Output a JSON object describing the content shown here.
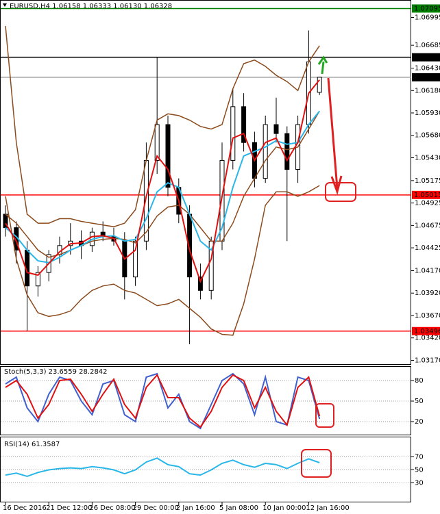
{
  "chart_data": [
    {
      "type": "candlestick",
      "title": "EURUSD,H4  1.06158 1.06333 1.06130 1.06328",
      "categories": [
        "16 Dec 2016",
        null,
        null,
        null,
        "21 Dec 12:00",
        null,
        null,
        null,
        "26 Dec 08:00",
        null,
        null,
        null,
        "29 Dec 00:00",
        null,
        null,
        null,
        "2 Jan 16:00",
        null,
        null,
        null,
        "5 Jan 08:00",
        null,
        null,
        null,
        "10 Jan 00:00",
        null,
        null,
        null,
        "12 Jan 16:00",
        null
      ],
      "open": [
        1.048,
        1.0465,
        1.044,
        1.04,
        1.0415,
        1.0435,
        1.0445,
        1.045,
        1.0445,
        1.046,
        1.0455,
        1.045,
        1.041,
        1.045,
        1.054,
        1.058,
        1.051,
        1.048,
        1.041,
        1.0395,
        1.045,
        1.054,
        1.06,
        1.056,
        1.052,
        1.058,
        1.057,
        1.053,
        1.058,
        1.0616
      ],
      "high": [
        1.049,
        1.0472,
        1.045,
        1.0422,
        1.044,
        1.0455,
        1.047,
        1.0462,
        1.0465,
        1.0472,
        1.0465,
        1.046,
        1.0455,
        1.056,
        1.0655,
        1.059,
        1.052,
        1.049,
        1.0425,
        1.0455,
        1.056,
        1.062,
        1.0615,
        1.0572,
        1.059,
        1.061,
        1.0578,
        1.059,
        1.0685,
        1.06333
      ],
      "low": [
        1.0455,
        1.0425,
        1.035,
        1.0388,
        1.0405,
        1.0425,
        1.0435,
        1.043,
        1.0438,
        1.045,
        1.0445,
        1.0385,
        1.04,
        1.044,
        1.0525,
        1.05,
        1.047,
        1.0335,
        1.0385,
        1.0385,
        1.044,
        1.053,
        1.055,
        1.051,
        1.0515,
        1.056,
        1.045,
        1.0515,
        1.057,
        1.0613
      ],
      "close": [
        1.0465,
        1.044,
        1.04,
        1.0415,
        1.0435,
        1.0445,
        1.045,
        1.0445,
        1.046,
        1.0455,
        1.045,
        1.041,
        1.045,
        1.054,
        1.058,
        1.051,
        1.048,
        1.041,
        1.0395,
        1.045,
        1.054,
        1.06,
        1.056,
        1.052,
        1.058,
        1.057,
        1.053,
        1.058,
        1.065,
        1.06328
      ],
      "up_color": "#ffffff",
      "down_color": "#000000",
      "series": [
        {
          "color": "#8b4a1c",
          "values": [
            1.069,
            1.056,
            1.048,
            1.047,
            1.047,
            1.0475,
            1.0475,
            1.0472,
            1.047,
            1.0468,
            1.0466,
            1.047,
            1.0485,
            1.054,
            1.0585,
            1.0592,
            1.059,
            1.0585,
            1.0578,
            1.0575,
            1.058,
            1.062,
            1.0648,
            1.0652,
            1.0645,
            1.0635,
            1.0628,
            1.0618,
            1.065,
            1.0668
          ]
        },
        {
          "color": "#8b4a1c",
          "values": [
            1.048,
            1.047,
            1.0455,
            1.044,
            1.0432,
            1.0435,
            1.044,
            1.0445,
            1.045,
            1.0452,
            1.0453,
            1.0452,
            1.0448,
            1.046,
            1.0478,
            1.0488,
            1.049,
            1.048,
            1.0465,
            1.045,
            1.045,
            1.047,
            1.05,
            1.052,
            1.054,
            1.0555,
            1.0552,
            1.0555,
            1.0575,
            1.0595
          ]
        },
        {
          "color": "#8b4a1c",
          "values": [
            1.05,
            1.043,
            1.039,
            1.037,
            1.0366,
            1.0368,
            1.0372,
            1.0385,
            1.0395,
            1.04,
            1.0402,
            1.0395,
            1.0392,
            1.0385,
            1.0378,
            1.038,
            1.0385,
            1.0375,
            1.0365,
            1.0352,
            1.0346,
            1.0345,
            1.038,
            1.043,
            1.049,
            1.0505,
            1.0505,
            1.05,
            1.0505,
            1.0512
          ]
        },
        {
          "color": "#29b6e8",
          "values": [
            1.0465,
            1.0455,
            1.044,
            1.0428,
            1.0426,
            1.0432,
            1.044,
            1.0445,
            1.0452,
            1.0455,
            1.0456,
            1.045,
            1.0452,
            1.0475,
            1.0505,
            1.0515,
            1.051,
            1.048,
            1.045,
            1.044,
            1.0465,
            1.051,
            1.0545,
            1.055,
            1.0555,
            1.0562,
            1.0558,
            1.056,
            1.058,
            1.0595
          ]
        },
        {
          "color": "#e01010",
          "values": [
            1.047,
            1.045,
            1.0415,
            1.0412,
            1.0425,
            1.0438,
            1.0447,
            1.0448,
            1.0455,
            1.0456,
            1.0453,
            1.043,
            1.044,
            1.05,
            1.0545,
            1.053,
            1.0495,
            1.044,
            1.0405,
            1.043,
            1.05,
            1.0565,
            1.057,
            1.054,
            1.056,
            1.0565,
            1.054,
            1.056,
            1.0615,
            1.063
          ]
        }
      ],
      "ylim": [
        1.0719,
        1.0312
      ],
      "yticks": [
        1.06995,
        1.06685,
        {
          "value": 1.0643,
          "label": "1.06430"
        },
        {
          "value": 1.0618,
          "label": "1.06180"
        },
        {
          "value": 1.0593,
          "label": "1.05930"
        },
        {
          "value": 1.0568,
          "label": "1.05680"
        },
        {
          "value": 1.0543,
          "label": "1.05430"
        },
        1.05175,
        1.04925,
        1.04675,
        1.04425,
        {
          "value": 1.0417,
          "label": "1.04170"
        },
        {
          "value": 1.0392,
          "label": "1.03920"
        },
        {
          "value": 1.0367,
          "label": "1.03670"
        },
        {
          "value": 1.0342,
          "label": "1.03420"
        },
        {
          "value": 1.0317,
          "label": "1.03170"
        }
      ],
      "levels": [
        {
          "value": 1.07095,
          "color": "#008000"
        },
        {
          "value": 1.06551,
          "color": "#000000"
        },
        {
          "value": 1.06328,
          "color": "#a0a0a0"
        },
        {
          "value": 1.05015,
          "color": "#ff0000"
        },
        {
          "value": 1.03496,
          "color": "#ff0000"
        }
      ]
    },
    {
      "type": "line",
      "title": "Stoch(5,3,3) 23.6559 28.2842",
      "series": [
        {
          "color": "#4060d0",
          "values": [
            75,
            85,
            40,
            20,
            60,
            85,
            80,
            50,
            30,
            75,
            80,
            30,
            20,
            85,
            90,
            40,
            60,
            20,
            10,
            45,
            80,
            90,
            75,
            30,
            85,
            20,
            15,
            85,
            80,
            24
          ]
        },
        {
          "color": "#e01010",
          "values": [
            70,
            80,
            60,
            25,
            45,
            80,
            82,
            60,
            35,
            60,
            82,
            45,
            25,
            70,
            88,
            55,
            55,
            25,
            12,
            35,
            70,
            88,
            80,
            40,
            70,
            35,
            15,
            70,
            85,
            28
          ]
        }
      ],
      "ylim": [
        0,
        100
      ],
      "yticks": [
        20,
        50,
        80
      ]
    },
    {
      "type": "line",
      "title": "RSI(14) 61.3587",
      "series": [
        {
          "color": "#29b6e8",
          "values": [
            42,
            45,
            40,
            46,
            50,
            52,
            53,
            52,
            55,
            53,
            50,
            44,
            50,
            62,
            68,
            58,
            55,
            44,
            42,
            50,
            60,
            65,
            58,
            54,
            60,
            58,
            52,
            60,
            67,
            61
          ]
        }
      ],
      "ylim": [
        0,
        100
      ],
      "yticks": [
        30,
        50,
        70
      ]
    }
  ]
}
